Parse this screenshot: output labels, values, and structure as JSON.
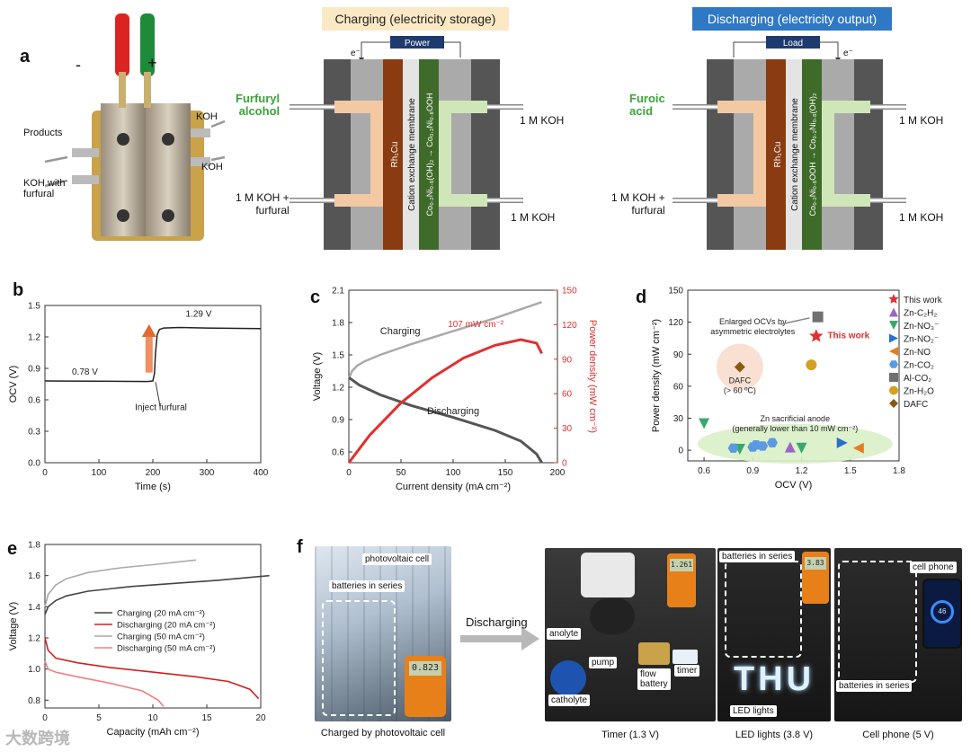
{
  "panels": {
    "a": "a",
    "b": "b",
    "c": "c",
    "d": "d",
    "e": "e",
    "f": "f"
  },
  "panel_a": {
    "cell_labels": {
      "minus": "-",
      "plus": "+",
      "products": "Products",
      "koh_with_furfural": "KOH with\nfurfural",
      "koh_top": "KOH",
      "koh_bottom": "KOH"
    },
    "charging": {
      "title": "Charging (electricity storage)",
      "source": "Power",
      "electron": "e⁻",
      "anode_out": "Furfuryl\nalcohol",
      "anode_in": "1 M KOH +\nfurfural",
      "cathode_out": "1 M KOH",
      "cathode_in": "1 M KOH",
      "electrode1": "Rh₁Cu",
      "membrane": "Cation exchange membrane",
      "electrode2": "Co₀.₂Ni₀.₈(OH)₂ → Co₀.₂Ni₀.₈OOH"
    },
    "discharging": {
      "title": "Discharging (electricity output)",
      "source": "Load",
      "electron": "e⁻",
      "anode_out": "Furoic\nacid",
      "anode_in": "1 M KOH +\nfurfural",
      "cathode_out": "1 M KOH",
      "cathode_in": "1 M KOH",
      "electrode1": "Rh₁Cu",
      "membrane": "Cation exchange membrane",
      "electrode2": "Co₀.₂Ni₀.₈OOH → Co₀.₂Ni₀.₈(OH)₂"
    },
    "colors": {
      "anode_text": "#3aa53a",
      "charging_title_bg": "#fbe8c4",
      "discharging_title_bg": "#2f78c4",
      "rh_electrode": "#8a3b12",
      "co_electrode": "#3f6b2a",
      "tan_flow": "#f3c9a3",
      "green_flow": "#cfe6b8"
    }
  },
  "chart_data": [
    {
      "panel": "b",
      "type": "line",
      "xlabel": "Time (s)",
      "ylabel": "OCV (V)",
      "xlim": [
        0,
        400
      ],
      "ylim": [
        0,
        1.5
      ],
      "xticks": [
        0,
        100,
        200,
        300,
        400
      ],
      "yticks": [
        0.0,
        0.3,
        0.6,
        0.9,
        1.2,
        1.5
      ],
      "series": [
        {
          "name": "OCV",
          "color": "#222222",
          "x": [
            0,
            190,
            200,
            203,
            205,
            208,
            212,
            220,
            250,
            300,
            400
          ],
          "y": [
            0.78,
            0.775,
            0.78,
            0.85,
            1.05,
            1.22,
            1.27,
            1.285,
            1.29,
            1.285,
            1.28
          ]
        }
      ],
      "annotations": {
        "before": "0.78 V",
        "after": "1.29 V",
        "event": "Inject furfural"
      }
    },
    {
      "panel": "c",
      "type": "line",
      "xlabel": "Current density (mA cm⁻²)",
      "ylabel": "Voltage (V)",
      "y2label": "Power density (mW cm⁻²)",
      "xlim": [
        0,
        200
      ],
      "ylim": [
        0.5,
        2.1
      ],
      "y2lim": [
        0,
        150
      ],
      "xticks": [
        0,
        50,
        100,
        150,
        200
      ],
      "yticks": [
        0.6,
        0.9,
        1.2,
        1.5,
        1.8,
        2.1
      ],
      "y2ticks": [
        0,
        30,
        60,
        90,
        120,
        150
      ],
      "series": [
        {
          "name": "Charging",
          "axis": "y",
          "color": "#aaaaaa",
          "x": [
            0,
            3,
            8,
            15,
            30,
            60,
            100,
            140,
            185
          ],
          "y": [
            1.28,
            1.35,
            1.4,
            1.44,
            1.5,
            1.6,
            1.72,
            1.84,
            1.99
          ]
        },
        {
          "name": "Discharging",
          "axis": "y",
          "color": "#555555",
          "x": [
            0,
            10,
            30,
            60,
            100,
            140,
            165,
            180,
            185
          ],
          "y": [
            1.29,
            1.22,
            1.13,
            1.03,
            0.92,
            0.8,
            0.7,
            0.58,
            0.5
          ]
        },
        {
          "name": "Power density",
          "axis": "y2",
          "color": "#e03030",
          "x": [
            0,
            20,
            50,
            80,
            110,
            140,
            165,
            180,
            185
          ],
          "y": [
            0,
            24,
            52,
            74,
            91,
            102,
            107,
            104,
            95
          ]
        }
      ],
      "annotations": {
        "charging": "Charging",
        "discharging": "Discharging",
        "peak": "107 mW cm⁻²"
      }
    },
    {
      "panel": "d",
      "type": "scatter",
      "xlabel": "OCV (V)",
      "ylabel": "Power density (mW cm⁻²)",
      "xlim": [
        0.5,
        1.8
      ],
      "ylim": [
        -10,
        150
      ],
      "xticks": [
        0.6,
        0.9,
        1.2,
        1.5,
        1.8
      ],
      "yticks": [
        0,
        30,
        60,
        90,
        120,
        150
      ],
      "legend": [
        {
          "name": "This work",
          "color": "#e03030",
          "marker": "star"
        },
        {
          "name": "Zn-C₂H₂",
          "color": "#9a66c8",
          "marker": "triangle-up"
        },
        {
          "name": "Zn-NO₃⁻",
          "color": "#3aa86a",
          "marker": "triangle-down"
        },
        {
          "name": "Zn-NO₂⁻",
          "color": "#2a6fd0",
          "marker": "triangle-right"
        },
        {
          "name": "Zn-NO",
          "color": "#e87a20",
          "marker": "triangle-left"
        },
        {
          "name": "Zn-CO₂",
          "color": "#5a9ae0",
          "marker": "hexagon"
        },
        {
          "name": "Al-CO₂",
          "color": "#707070",
          "marker": "square"
        },
        {
          "name": "Zn-H₂O",
          "color": "#d4a020",
          "marker": "circle"
        },
        {
          "name": "DAFC",
          "color": "#8a5a10",
          "marker": "diamond"
        }
      ],
      "points": [
        {
          "series": "This work",
          "x": 1.29,
          "y": 107
        },
        {
          "series": "Al-CO₂",
          "x": 1.3,
          "y": 125
        },
        {
          "series": "Zn-H₂O",
          "x": 1.26,
          "y": 80
        },
        {
          "series": "DAFC",
          "x": 0.82,
          "y": 78
        },
        {
          "series": "Zn-NO₃⁻",
          "x": 0.6,
          "y": 25
        },
        {
          "series": "Zn-NO₃⁻",
          "x": 0.82,
          "y": 1
        },
        {
          "series": "Zn-NO₃⁻",
          "x": 1.2,
          "y": 2
        },
        {
          "series": "Zn-C₂H₂",
          "x": 1.13,
          "y": 3
        },
        {
          "series": "Zn-NO₂⁻",
          "x": 1.45,
          "y": 7
        },
        {
          "series": "Zn-NO",
          "x": 1.55,
          "y": 2
        },
        {
          "series": "Zn-CO₂",
          "x": 0.78,
          "y": 2
        },
        {
          "series": "Zn-CO₂",
          "x": 0.9,
          "y": 3
        },
        {
          "series": "Zn-CO₂",
          "x": 0.92,
          "y": 5
        },
        {
          "series": "Zn-CO₂",
          "x": 0.96,
          "y": 4
        },
        {
          "series": "Zn-CO₂",
          "x": 1.02,
          "y": 7
        }
      ],
      "annotations": {
        "this_work": "This work",
        "ocv_note": "Enlarged OCVs by\nasymmetric electrolytes",
        "dafc_note": "DAFC\n(> 60 ºC)",
        "zn_note": "Zn sacrificial anode\n(generally lower than 10 mW cm⁻²)"
      }
    },
    {
      "panel": "e",
      "type": "line",
      "xlabel": "Capacity (mAh cm⁻²)",
      "ylabel": "Voltage (V)",
      "xlim": [
        0,
        20
      ],
      "ylim": [
        0.75,
        1.8
      ],
      "xticks": [
        0,
        5,
        10,
        15,
        20
      ],
      "yticks": [
        0.8,
        1.0,
        1.2,
        1.4,
        1.6,
        1.8
      ],
      "series": [
        {
          "name": "Charging  (20 mA cm⁻²)",
          "color": "#444444",
          "x": [
            0,
            0.3,
            1,
            2,
            4,
            8,
            12,
            16,
            20.8
          ],
          "y": [
            1.35,
            1.4,
            1.44,
            1.47,
            1.5,
            1.53,
            1.55,
            1.57,
            1.6
          ]
        },
        {
          "name": "Discharging (20 mA cm⁻²)",
          "color": "#d02020",
          "x": [
            0,
            0.3,
            1,
            3,
            6,
            10,
            14,
            17,
            19,
            19.8
          ],
          "y": [
            1.2,
            1.12,
            1.07,
            1.04,
            1.01,
            0.98,
            0.95,
            0.92,
            0.87,
            0.81
          ]
        },
        {
          "name": "Charging  (50 mA cm⁻²)",
          "color": "#aaaaaa",
          "x": [
            0,
            0.3,
            1,
            2,
            4,
            7,
            10,
            14
          ],
          "y": [
            1.4,
            1.48,
            1.54,
            1.58,
            1.62,
            1.65,
            1.67,
            1.7
          ]
        },
        {
          "name": "Discharging (50 mA cm⁻²)",
          "color": "#f08080",
          "x": [
            0,
            0.3,
            1,
            3,
            6,
            9,
            10.5,
            11
          ],
          "y": [
            1.05,
            1.0,
            0.98,
            0.95,
            0.91,
            0.86,
            0.8,
            0.76
          ]
        }
      ]
    }
  ],
  "panel_f": {
    "photo1": {
      "labels": {
        "pv": "photovoltaic cell",
        "batteries": "batteries in series"
      },
      "caption": "Charged by photovoltaic cell",
      "meter": "0.823"
    },
    "arrow": "Discharging",
    "photo2": {
      "labels": {
        "anolyte": "anolyte",
        "pump": "pump",
        "catholyte": "catholyte",
        "flow": "flow\nbattery",
        "timer": "timer"
      },
      "caption": "Timer (1.3 V)",
      "meter": "1.261"
    },
    "photo3": {
      "labels": {
        "batteries": "batteries in series",
        "led": "LED lights"
      },
      "caption": "LED lights (3.8 V)",
      "sign": "THU",
      "meter": "3.83"
    },
    "photo4": {
      "labels": {
        "phone": "cell phone",
        "batteries": "batteries in series"
      },
      "caption": "Cell phone (5 V)",
      "screen": "46"
    }
  },
  "watermark": "大数跨境"
}
